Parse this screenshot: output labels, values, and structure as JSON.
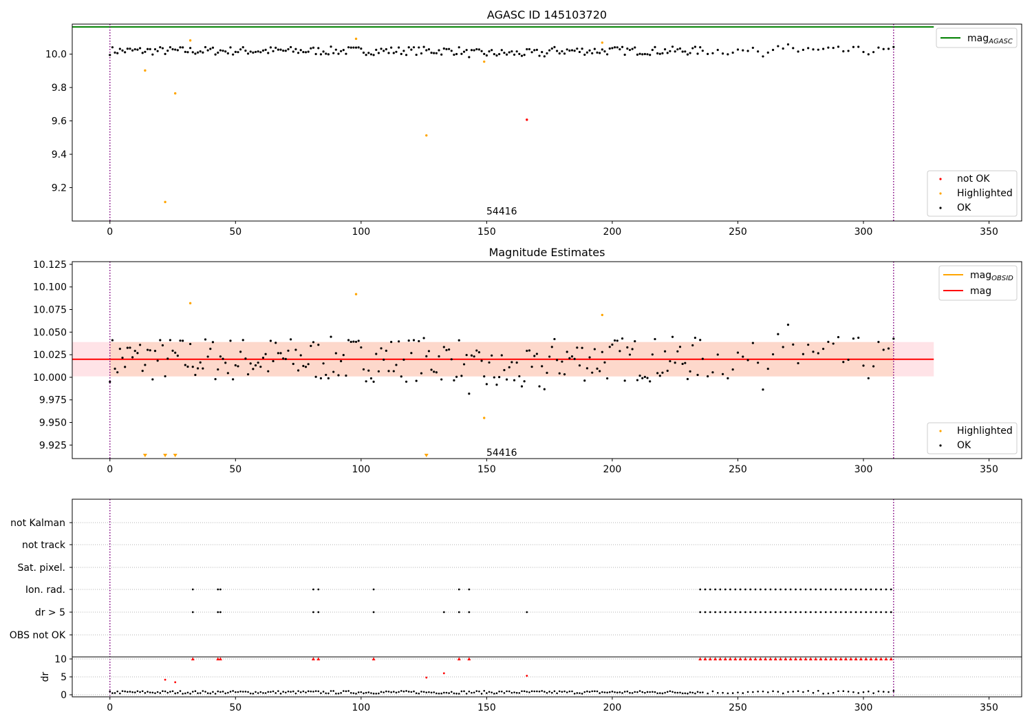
{
  "chart_data": [
    {
      "type": "scatter",
      "title": "AGASC ID 145103720",
      "xlim": [
        -15,
        363
      ],
      "ylim": [
        9.0,
        10.18
      ],
      "xticks": [
        0,
        50,
        100,
        150,
        200,
        250,
        300,
        350
      ],
      "yticks": [
        9.2,
        9.4,
        9.6,
        9.8,
        10.0
      ],
      "ytick_labels": [
        "9.2",
        "9.4",
        "9.6",
        "9.8",
        "10.0"
      ],
      "vlines": [
        0,
        312
      ],
      "hline": {
        "name": "mag",
        "sub": "AGASC",
        "value": 10.163,
        "x": [
          -15,
          328
        ],
        "color": "#008000"
      },
      "annotation": {
        "text": "54416",
        "x": 156,
        "y": 9.06
      },
      "legend_upper": [
        {
          "label": "mag",
          "sub": "AGASC",
          "color": "#008000"
        }
      ],
      "legend_lower": [
        {
          "label": "not OK",
          "color": "#ff0000"
        },
        {
          "label": "Highlighted",
          "color": "#ffa500"
        },
        {
          "label": "OK",
          "color": "#000000"
        }
      ],
      "series": [
        {
          "name": "not OK",
          "color": "#ff0000",
          "points": [
            [
              166,
              9.607
            ]
          ]
        },
        {
          "name": "Highlighted",
          "color": "#ffa500",
          "points": [
            [
              14,
              9.902
            ],
            [
              22,
              9.114
            ],
            [
              26,
              9.765
            ],
            [
              32,
              10.082
            ],
            [
              98,
              10.092
            ],
            [
              126,
              9.513
            ],
            [
              149,
              9.955
            ],
            [
              196,
              10.069
            ]
          ]
        }
      ]
    },
    {
      "type": "scatter",
      "title": "Magnitude Estimates",
      "xlim": [
        -15,
        363
      ],
      "ylim": [
        9.91,
        10.128
      ],
      "xticks": [
        0,
        50,
        100,
        150,
        200,
        250,
        300,
        350
      ],
      "yticks": [
        9.925,
        9.95,
        9.975,
        10.0,
        10.025,
        10.05,
        10.075,
        10.1,
        10.125
      ],
      "ytick_labels": [
        "9.925",
        "9.950",
        "9.975",
        "10.000",
        "10.025",
        "10.050",
        "10.075",
        "10.100",
        "10.125"
      ],
      "vlines": [
        0,
        312
      ],
      "mean_line": {
        "value": 10.02,
        "x": [
          -15,
          328
        ],
        "color": "#ff0000"
      },
      "band_outer": {
        "y": [
          10.001,
          10.039
        ],
        "x": [
          -15,
          328
        ],
        "color": "#ffc8d0"
      },
      "band_inner": {
        "y": [
          10.001,
          10.039
        ],
        "x": [
          0,
          312
        ],
        "color": "#fcd4c4"
      },
      "annotation": {
        "text": "54416",
        "x": 156,
        "y": 9.917
      },
      "legend_upper": [
        {
          "label": "mag",
          "sub": "OBSID",
          "color": "#ffa500"
        },
        {
          "label": "mag",
          "sub": "",
          "color": "#ff0000"
        }
      ],
      "legend_lower": [
        {
          "label": "Highlighted",
          "color": "#ffa500"
        },
        {
          "label": "OK",
          "color": "#000000"
        }
      ],
      "highlighted": [
        [
          32,
          10.082
        ],
        [
          98,
          10.092
        ],
        [
          149,
          9.955
        ],
        [
          196,
          10.069
        ]
      ],
      "clipped_markers": [
        14,
        22,
        26,
        126
      ]
    },
    {
      "type": "scatter",
      "title": "",
      "xlim": [
        -15,
        363
      ],
      "xticks": [
        0,
        50,
        100,
        150,
        200,
        250,
        300,
        350
      ],
      "vlines": [
        0,
        312
      ],
      "flag_rows": [
        "not Kalman",
        "not track",
        "Sat. pixel.",
        "Ion. rad.",
        "dr > 5",
        "OBS not OK"
      ],
      "dr_ylabel": "dr",
      "dr_yticks": [
        0,
        5,
        10
      ],
      "ion_rad_x": [
        33,
        43,
        44,
        81,
        83,
        105,
        139,
        143
      ],
      "dr_gt5_x": [
        33,
        43,
        44,
        81,
        83,
        105,
        133,
        139,
        143,
        166
      ],
      "dr_clipped_x": [
        33,
        43,
        44,
        81,
        83,
        105,
        139,
        143
      ],
      "dr_highlight": [
        [
          22,
          4.2
        ],
        [
          26,
          3.5
        ],
        [
          126,
          4.8
        ],
        [
          133,
          6.0
        ],
        [
          166,
          5.3
        ]
      ],
      "dense_flag_start": 235,
      "dense_flag_end": 312
    }
  ]
}
